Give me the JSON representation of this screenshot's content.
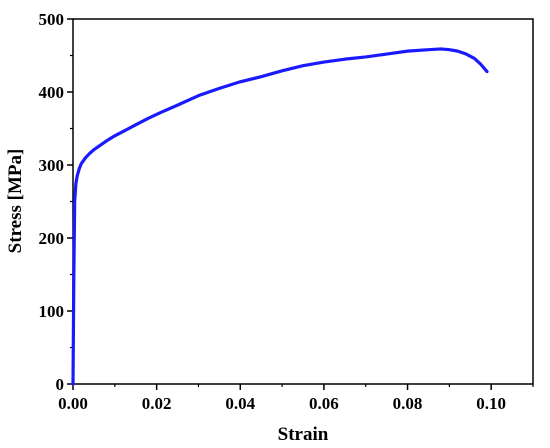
{
  "chart_data": {
    "type": "line",
    "title": "",
    "xlabel": "Strain",
    "ylabel": "Stress [MPa]",
    "xlim": [
      0,
      0.11
    ],
    "ylim": [
      0,
      500
    ],
    "x_ticks": [
      "0.00",
      "0.02",
      "0.04",
      "0.06",
      "0.08",
      "0.10"
    ],
    "y_ticks": [
      "0",
      "100",
      "200",
      "300",
      "400",
      "500"
    ],
    "grid": false,
    "legend": "none",
    "series": [
      {
        "color": "#1a1aff",
        "x": [
          0,
          0.0002,
          0.0004,
          0.0007,
          0.001,
          0.0015,
          0.002,
          0.003,
          0.004,
          0.005,
          0.0065,
          0.008,
          0.01,
          0.012,
          0.015,
          0.018,
          0.021,
          0.025,
          0.03,
          0.035,
          0.04,
          0.045,
          0.05,
          0.055,
          0.06,
          0.065,
          0.07,
          0.075,
          0.08,
          0.085,
          0.088,
          0.09,
          0.092,
          0.094,
          0.096,
          0.0975,
          0.099
        ],
        "y": [
          0,
          150,
          250,
          275,
          285,
          295,
          302,
          310,
          316,
          321,
          327,
          333,
          340,
          346,
          355,
          364,
          372,
          382,
          395,
          405,
          414,
          421,
          429,
          436,
          441,
          445,
          448,
          452,
          456,
          458,
          459,
          458,
          456,
          452,
          446,
          438,
          428
        ]
      }
    ]
  }
}
